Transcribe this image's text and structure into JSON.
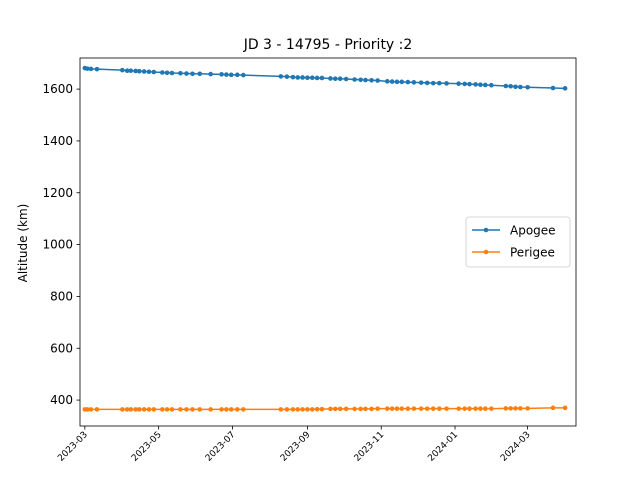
{
  "chart_data": {
    "type": "line",
    "title": "JD 3 - 14795 - Priority :2",
    "xlabel": "",
    "ylabel": "Altitude (km)",
    "xlim": [
      "2023-02-25",
      "2024-04-10"
    ],
    "ylim": [
      300,
      1720
    ],
    "xticks": [
      "2023-03",
      "2023-05",
      "2023-07",
      "2023-09",
      "2023-11",
      "2024-01",
      "2024-03"
    ],
    "yticks": [
      400,
      600,
      800,
      1000,
      1200,
      1400,
      1600
    ],
    "legend": {
      "position": "center-right",
      "entries": [
        "Apogee",
        "Perigee"
      ]
    },
    "grid": false,
    "series": [
      {
        "name": "Apogee",
        "color": "#1f77b4",
        "marker": "circle",
        "points": [
          [
            "2023-03-01",
            1681
          ],
          [
            "2023-03-03",
            1679
          ],
          [
            "2023-03-06",
            1678
          ],
          [
            "2023-03-11",
            1677
          ],
          [
            "2023-04-01",
            1673
          ],
          [
            "2023-04-05",
            1671
          ],
          [
            "2023-04-08",
            1671
          ],
          [
            "2023-04-12",
            1670
          ],
          [
            "2023-04-15",
            1669
          ],
          [
            "2023-04-19",
            1668
          ],
          [
            "2023-04-23",
            1667
          ],
          [
            "2023-04-27",
            1666
          ],
          [
            "2023-05-04",
            1664
          ],
          [
            "2023-05-08",
            1663
          ],
          [
            "2023-05-12",
            1662
          ],
          [
            "2023-05-19",
            1661
          ],
          [
            "2023-05-24",
            1660
          ],
          [
            "2023-05-29",
            1659
          ],
          [
            "2023-06-04",
            1659
          ],
          [
            "2023-06-13",
            1658
          ],
          [
            "2023-06-22",
            1657
          ],
          [
            "2023-06-26",
            1656
          ],
          [
            "2023-06-30",
            1655
          ],
          [
            "2023-07-05",
            1655
          ],
          [
            "2023-07-10",
            1654
          ],
          [
            "2023-08-10",
            1649
          ],
          [
            "2023-08-15",
            1648
          ],
          [
            "2023-08-20",
            1646
          ],
          [
            "2023-08-24",
            1645
          ],
          [
            "2023-08-28",
            1645
          ],
          [
            "2023-09-01",
            1644
          ],
          [
            "2023-09-05",
            1644
          ],
          [
            "2023-09-09",
            1643
          ],
          [
            "2023-09-13",
            1643
          ],
          [
            "2023-09-20",
            1641
          ],
          [
            "2023-09-24",
            1640
          ],
          [
            "2023-09-28",
            1640
          ],
          [
            "2023-10-03",
            1639
          ],
          [
            "2023-10-10",
            1637
          ],
          [
            "2023-10-15",
            1636
          ],
          [
            "2023-10-19",
            1635
          ],
          [
            "2023-10-24",
            1634
          ],
          [
            "2023-10-29",
            1633
          ],
          [
            "2023-11-06",
            1630
          ],
          [
            "2023-11-10",
            1629
          ],
          [
            "2023-11-14",
            1628
          ],
          [
            "2023-11-18",
            1628
          ],
          [
            "2023-11-23",
            1627
          ],
          [
            "2023-11-28",
            1626
          ],
          [
            "2023-12-04",
            1625
          ],
          [
            "2023-12-09",
            1624
          ],
          [
            "2023-12-14",
            1623
          ],
          [
            "2023-12-19",
            1623
          ],
          [
            "2023-12-25",
            1622
          ],
          [
            "2024-01-04",
            1621
          ],
          [
            "2024-01-09",
            1620
          ],
          [
            "2024-01-13",
            1619
          ],
          [
            "2024-01-18",
            1618
          ],
          [
            "2024-01-22",
            1617
          ],
          [
            "2024-01-26",
            1616
          ],
          [
            "2024-01-31",
            1615
          ],
          [
            "2024-02-12",
            1612
          ],
          [
            "2024-02-16",
            1611
          ],
          [
            "2024-02-20",
            1609
          ],
          [
            "2024-02-24",
            1608
          ],
          [
            "2024-03-01",
            1607
          ],
          [
            "2024-03-22",
            1604
          ],
          [
            "2024-04-01",
            1603
          ]
        ]
      },
      {
        "name": "Perigee",
        "color": "#ff7f0e",
        "marker": "circle",
        "points": [
          [
            "2023-03-01",
            364
          ],
          [
            "2023-03-03",
            364
          ],
          [
            "2023-03-06",
            364
          ],
          [
            "2023-03-11",
            364
          ],
          [
            "2023-04-01",
            364
          ],
          [
            "2023-04-05",
            364
          ],
          [
            "2023-04-08",
            364
          ],
          [
            "2023-04-12",
            364
          ],
          [
            "2023-04-15",
            364
          ],
          [
            "2023-04-19",
            364
          ],
          [
            "2023-04-23",
            364
          ],
          [
            "2023-04-27",
            364
          ],
          [
            "2023-05-04",
            364
          ],
          [
            "2023-05-08",
            364
          ],
          [
            "2023-05-12",
            364
          ],
          [
            "2023-05-19",
            364
          ],
          [
            "2023-05-24",
            364
          ],
          [
            "2023-05-29",
            364
          ],
          [
            "2023-06-04",
            364
          ],
          [
            "2023-06-13",
            364
          ],
          [
            "2023-06-22",
            364
          ],
          [
            "2023-06-26",
            364
          ],
          [
            "2023-06-30",
            364
          ],
          [
            "2023-07-05",
            364
          ],
          [
            "2023-07-10",
            364
          ],
          [
            "2023-08-10",
            364
          ],
          [
            "2023-08-15",
            364
          ],
          [
            "2023-08-20",
            364
          ],
          [
            "2023-08-24",
            364
          ],
          [
            "2023-08-28",
            364
          ],
          [
            "2023-09-01",
            364
          ],
          [
            "2023-09-05",
            364
          ],
          [
            "2023-09-09",
            365
          ],
          [
            "2023-09-13",
            365
          ],
          [
            "2023-09-20",
            366
          ],
          [
            "2023-09-24",
            366
          ],
          [
            "2023-09-28",
            366
          ],
          [
            "2023-10-03",
            366
          ],
          [
            "2023-10-10",
            366
          ],
          [
            "2023-10-15",
            366
          ],
          [
            "2023-10-19",
            366
          ],
          [
            "2023-10-24",
            366
          ],
          [
            "2023-10-29",
            367
          ],
          [
            "2023-11-06",
            367
          ],
          [
            "2023-11-10",
            367
          ],
          [
            "2023-11-14",
            367
          ],
          [
            "2023-11-18",
            367
          ],
          [
            "2023-11-23",
            367
          ],
          [
            "2023-11-28",
            367
          ],
          [
            "2023-12-04",
            367
          ],
          [
            "2023-12-09",
            367
          ],
          [
            "2023-12-14",
            367
          ],
          [
            "2023-12-19",
            367
          ],
          [
            "2023-12-25",
            367
          ],
          [
            "2024-01-04",
            367
          ],
          [
            "2024-01-09",
            367
          ],
          [
            "2024-01-13",
            367
          ],
          [
            "2024-01-18",
            367
          ],
          [
            "2024-01-22",
            367
          ],
          [
            "2024-01-26",
            367
          ],
          [
            "2024-01-31",
            367
          ],
          [
            "2024-02-12",
            368
          ],
          [
            "2024-02-16",
            368
          ],
          [
            "2024-02-20",
            368
          ],
          [
            "2024-02-24",
            368
          ],
          [
            "2024-03-01",
            368
          ],
          [
            "2024-03-22",
            370
          ],
          [
            "2024-04-01",
            370
          ]
        ]
      }
    ]
  }
}
